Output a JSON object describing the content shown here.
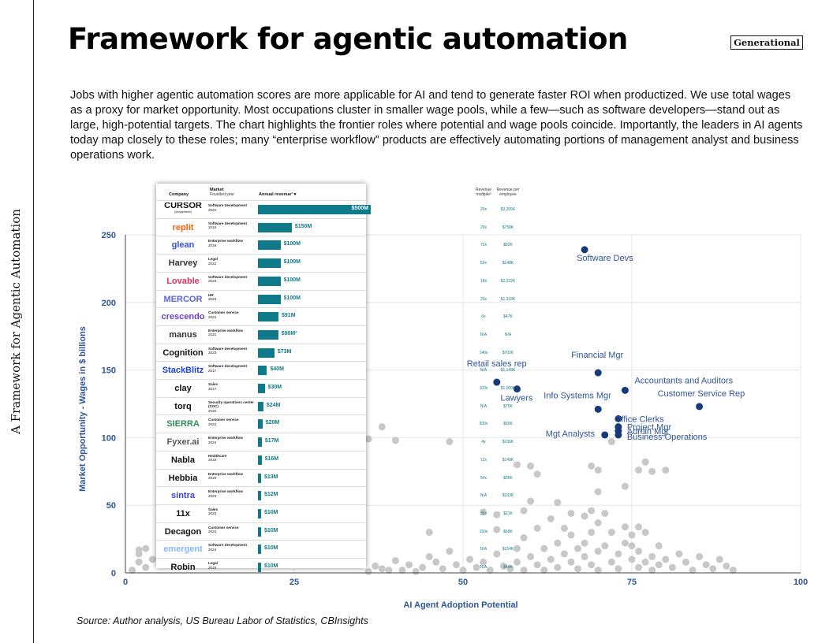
{
  "header": {
    "title": "Framework for agentic automation",
    "brand": "Generational",
    "side_title": "A Framework for Agentic Automation",
    "intro": "Jobs with higher agentic automation scores are more applicable for AI and tend to generate faster ROI when productized. We use total wages as a proxy for market opportunity. Most occupations cluster in smaller wage pools, while a few—such as software developers—stand out as large, high-potential targets. The chart highlights the frontier roles where potential and wage pools coincide. Importantly, the leaders in AI agents today map closely to these roles; many “enterprise workflow” products are effectively automating portions of management analyst and business operations work.",
    "source": "Source: Author analysis, US Bureau Labor of Statistics, CBInsights"
  },
  "colors": {
    "highlight": "#173a7a",
    "background_points": "#c8c8c8",
    "label": "#2f5597",
    "bar": "#0f7a8a",
    "grid": "#e6e6e6"
  },
  "chart_data": {
    "type": "scatter",
    "xlabel": "AI Agent Adoption Potential",
    "ylabel": "Market Opportunity - Wages in $ billions",
    "xlim": [
      0,
      100
    ],
    "ylim": [
      0,
      250
    ],
    "xticks": [
      0,
      25,
      50,
      75,
      100
    ],
    "yticks": [
      0,
      50,
      100,
      150,
      200,
      250
    ],
    "grid": true,
    "highlighted": [
      {
        "label": "Software Devs",
        "x": 68,
        "y": 239
      },
      {
        "label": "Financial Mgr",
        "x": 70,
        "y": 148
      },
      {
        "label": "Retail sales rep",
        "x": 55,
        "y": 141
      },
      {
        "label": "Lawyers",
        "x": 58,
        "y": 136
      },
      {
        "label": "Accountants and Auditors",
        "x": 74,
        "y": 135
      },
      {
        "label": "Customer Service Rep",
        "x": 85,
        "y": 123
      },
      {
        "label": "Info Systems Mgr",
        "x": 70,
        "y": 121
      },
      {
        "label": "Office Clerks",
        "x": 73,
        "y": 114
      },
      {
        "label": "Project Mgr",
        "x": 73,
        "y": 108
      },
      {
        "label": "Admin Mgr",
        "x": 73,
        "y": 105
      },
      {
        "label": "Business Operations",
        "x": 73,
        "y": 102
      },
      {
        "label": "Mgt Analysts",
        "x": 71,
        "y": 102
      }
    ],
    "background_points": [
      [
        1,
        2
      ],
      [
        2,
        8
      ],
      [
        2,
        17
      ],
      [
        3,
        18
      ],
      [
        3,
        4
      ],
      [
        2,
        14
      ],
      [
        4,
        10
      ],
      [
        36,
        1
      ],
      [
        37,
        5
      ],
      [
        38,
        3
      ],
      [
        39,
        2
      ],
      [
        40,
        9
      ],
      [
        41,
        2
      ],
      [
        42,
        6
      ],
      [
        43,
        1
      ],
      [
        44,
        4
      ],
      [
        45,
        12
      ],
      [
        45,
        30
      ],
      [
        46,
        8
      ],
      [
        47,
        3
      ],
      [
        48,
        16
      ],
      [
        49,
        6
      ],
      [
        50,
        2
      ],
      [
        51,
        10
      ],
      [
        52,
        4
      ],
      [
        53,
        8
      ],
      [
        54,
        2
      ],
      [
        55,
        14
      ],
      [
        55,
        43
      ],
      [
        56,
        5
      ],
      [
        57,
        3
      ],
      [
        58,
        18
      ],
      [
        58,
        8
      ],
      [
        59,
        26
      ],
      [
        59,
        2
      ],
      [
        60,
        12
      ],
      [
        60,
        53
      ],
      [
        61,
        6
      ],
      [
        61,
        33
      ],
      [
        62,
        18
      ],
      [
        62,
        2
      ],
      [
        63,
        10
      ],
      [
        63,
        40
      ],
      [
        64,
        22
      ],
      [
        64,
        4
      ],
      [
        65,
        14
      ],
      [
        65,
        33
      ],
      [
        66,
        8
      ],
      [
        66,
        28
      ],
      [
        67,
        18
      ],
      [
        67,
        3
      ],
      [
        68,
        12
      ],
      [
        68,
        22
      ],
      [
        68,
        42
      ],
      [
        69,
        6
      ],
      [
        69,
        30
      ],
      [
        70,
        16
      ],
      [
        70,
        37
      ],
      [
        70,
        2
      ],
      [
        71,
        20
      ],
      [
        71,
        44
      ],
      [
        72,
        8
      ],
      [
        72,
        30
      ],
      [
        73,
        14
      ],
      [
        73,
        3
      ],
      [
        74,
        22
      ],
      [
        74,
        34
      ],
      [
        75,
        10
      ],
      [
        75,
        20
      ],
      [
        76,
        4
      ],
      [
        76,
        16
      ],
      [
        77,
        8
      ],
      [
        77,
        30
      ],
      [
        78,
        12
      ],
      [
        78,
        2
      ],
      [
        79,
        20
      ],
      [
        79,
        6
      ],
      [
        80,
        10
      ],
      [
        81,
        4
      ],
      [
        82,
        14
      ],
      [
        83,
        8
      ],
      [
        84,
        2
      ],
      [
        85,
        12
      ],
      [
        86,
        6
      ],
      [
        87,
        3
      ],
      [
        88,
        10
      ],
      [
        89,
        5
      ],
      [
        90,
        2
      ],
      [
        58,
        80
      ],
      [
        60,
        79
      ],
      [
        61,
        73
      ],
      [
        69,
        79
      ],
      [
        70,
        76
      ],
      [
        76,
        76
      ],
      [
        77,
        82
      ],
      [
        78,
        75
      ],
      [
        80,
        76
      ],
      [
        72,
        97
      ],
      [
        38,
        108
      ],
      [
        36,
        99
      ],
      [
        40,
        98
      ],
      [
        48,
        97
      ],
      [
        53,
        45
      ],
      [
        64,
        52
      ],
      [
        66,
        44
      ],
      [
        69,
        46
      ],
      [
        70,
        60
      ],
      [
        74,
        64
      ],
      [
        75,
        28
      ],
      [
        76,
        34
      ],
      [
        59,
        46
      ],
      [
        55,
        32
      ]
    ]
  },
  "company_table": {
    "headers": {
      "company": "Company",
      "market": "Market",
      "founded": "Founded year",
      "revenue": "Annual revenue¹ ▾",
      "multiple": "Revenue multiple²",
      "per_employee": "Revenue per employee"
    },
    "rows": [
      {
        "company": "CURSOR",
        "sub": "(Anysphere)",
        "market": "Software development",
        "year": "2022",
        "revenue_label": "$500M",
        "revenue": 500,
        "multiple": "20x",
        "per_employee": "$3,205K"
      },
      {
        "company": "replit",
        "sub": "",
        "market": "Software development",
        "year": "2016",
        "revenue_label": "$150M",
        "revenue": 150,
        "multiple": "20x",
        "per_employee": "$758K"
      },
      {
        "company": "glean",
        "sub": "",
        "market": "Enterprise workflow",
        "year": "2019",
        "revenue_label": "$100M",
        "revenue": 100,
        "multiple": "72x",
        "per_employee": "$82K"
      },
      {
        "company": "Harvey",
        "sub": "",
        "market": "Legal",
        "year": "2022",
        "revenue_label": "$100M",
        "revenue": 100,
        "multiple": "50x",
        "per_employee": "$148K"
      },
      {
        "company": "Lovable",
        "sub": "",
        "market": "Software development",
        "year": "2023",
        "revenue_label": "$100M",
        "revenue": 100,
        "multiple": "18x",
        "per_employee": "$2,222K"
      },
      {
        "company": "MERCOR",
        "sub": "",
        "market": "HR",
        "year": "2023",
        "revenue_label": "$100M",
        "revenue": 100,
        "multiple": "20x",
        "per_employee": "$1,333K"
      },
      {
        "company": "crescendo",
        "sub": "",
        "market": "Customer service",
        "year": "2024",
        "revenue_label": "$91M",
        "revenue": 91,
        "multiple": "6x",
        "per_employee": "$47K"
      },
      {
        "company": "manus",
        "sub": "",
        "market": "Enterprise workflow",
        "year": "2022",
        "revenue_label": "$90M³",
        "revenue": 90,
        "multiple": "N/A",
        "per_employee": "N/A"
      },
      {
        "company": "Cognition",
        "sub": "",
        "market": "Software development",
        "year": "2023",
        "revenue_label": "$73M",
        "revenue": 73,
        "multiple": "140x",
        "per_employee": "$702K"
      },
      {
        "company": "StackBlitz",
        "sub": "",
        "market": "Software development",
        "year": "2017",
        "revenue_label": "$40M",
        "revenue": 40,
        "multiple": "N/A",
        "per_employee": "$1,143K"
      },
      {
        "company": "clay",
        "sub": "",
        "market": "Sales",
        "year": "2017",
        "revenue_label": "$30M",
        "revenue": 30,
        "multiple": "103x",
        "per_employee": "$1,000K"
      },
      {
        "company": "torq",
        "sub": "",
        "market": "Security operations center (SOC)",
        "year": "2020",
        "revenue_label": "$24M",
        "revenue": 24,
        "multiple": "N/A",
        "per_employee": "$75K"
      },
      {
        "company": "SIERRA",
        "sub": "",
        "market": "Customer service",
        "year": "2023",
        "revenue_label": "$20M",
        "revenue": 20,
        "multiple": "500x",
        "per_employee": "$65K"
      },
      {
        "company": "Fyxer.ai",
        "sub": "",
        "market": "Enterprise workflow",
        "year": "2024",
        "revenue_label": "$17M",
        "revenue": 17,
        "multiple": "4x",
        "per_employee": "$236K"
      },
      {
        "company": "Nabla",
        "sub": "",
        "market": "Healthcare",
        "year": "2018",
        "revenue_label": "$16M",
        "revenue": 16,
        "multiple": "12x",
        "per_employee": "$149K"
      },
      {
        "company": "Hebbia",
        "sub": "",
        "market": "Enterprise workflow",
        "year": "2020",
        "revenue_label": "$13M",
        "revenue": 13,
        "multiple": "54x",
        "per_employee": "$96K"
      },
      {
        "company": "sintra",
        "sub": "",
        "market": "Enterprise workflow",
        "year": "2023",
        "revenue_label": "$12M",
        "revenue": 12,
        "multiple": "N/A",
        "per_employee": "$333K"
      },
      {
        "company": "11x",
        "sub": "",
        "market": "Sales",
        "year": "2023",
        "revenue_label": "$10M",
        "revenue": 10,
        "multiple": "35x",
        "per_employee": "$21K"
      },
      {
        "company": "Decagon",
        "sub": "",
        "market": "Customer service",
        "year": "2023",
        "revenue_label": "$10M",
        "revenue": 10,
        "multiple": "150x",
        "per_employee": "$68K"
      },
      {
        "company": "emergent",
        "sub": "",
        "market": "Software development",
        "year": "2024",
        "revenue_label": "$10M",
        "revenue": 10,
        "multiple": "N/A",
        "per_employee": "$154K"
      },
      {
        "company": "Robin",
        "sub": "",
        "market": "Legal",
        "year": "2019",
        "revenue_label": "$10M",
        "revenue": 10,
        "multiple": "N/A",
        "per_employee": "$49K"
      }
    ],
    "logo_colors": [
      "#111111",
      "#f26207",
      "#3b4fd8",
      "#333333",
      "#d9345e",
      "#5b5fe0",
      "#6b3fd4",
      "#333333",
      "#111111",
      "#1a3fe0",
      "#111111",
      "#111111",
      "#2e8b57",
      "#555555",
      "#111111",
      "#111111",
      "#3b3fd8",
      "#111111",
      "#111111",
      "#8ab6ff",
      "#111111"
    ]
  }
}
